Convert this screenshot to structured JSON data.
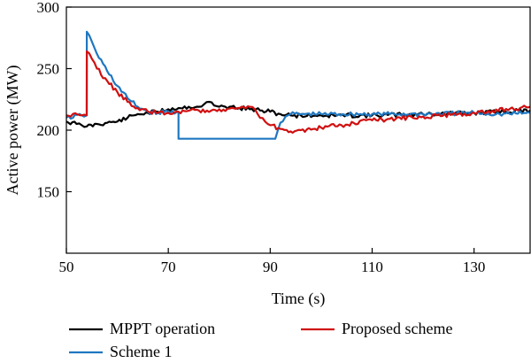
{
  "chart_data": {
    "type": "line",
    "xlabel": "Time (s)",
    "ylabel": "Active power (MW)",
    "xlim": [
      50,
      141
    ],
    "ylim": [
      100,
      300
    ],
    "xticks": [
      50,
      70,
      90,
      110,
      130
    ],
    "yticks": [
      150,
      200,
      250,
      300
    ],
    "grid": false,
    "legend_position": "bottom",
    "series": [
      {
        "name": "MPPT operation",
        "color": "#000000",
        "x": [
          50,
          52,
          53,
          54,
          56,
          58,
          60,
          62,
          64,
          66,
          68,
          70,
          72,
          74,
          76,
          77,
          78,
          79,
          80,
          82,
          84,
          86,
          88,
          90,
          92,
          94,
          96,
          100,
          110,
          120,
          130,
          141
        ],
        "y": [
          207,
          205,
          204,
          203,
          205,
          206,
          207,
          210,
          213,
          214,
          215,
          217,
          218,
          219,
          219,
          221,
          223,
          220,
          219,
          219,
          218,
          217,
          216,
          215,
          213,
          212,
          212,
          212,
          212,
          213,
          214,
          216
        ]
      },
      {
        "name": "Scheme 1",
        "color": "#1f77c0",
        "x": [
          50,
          53,
          54,
          54.01,
          55,
          56,
          58,
          60,
          62,
          64,
          66,
          68,
          70,
          72,
          72.01,
          80,
          91,
          91.5,
          92,
          93,
          94,
          96,
          100,
          110,
          120,
          130,
          135,
          141
        ],
        "y": [
          210,
          212,
          212,
          280,
          272,
          262,
          248,
          236,
          226,
          219,
          215,
          214,
          215,
          215,
          193,
          193,
          193,
          200,
          206,
          211,
          213,
          213,
          213,
          213,
          213,
          214,
          213,
          214
        ]
      },
      {
        "name": "Proposed scheme",
        "color": "#d01010",
        "x": [
          50,
          53,
          54,
          54.01,
          55,
          56,
          58,
          60,
          62,
          64,
          66,
          68,
          70,
          72,
          76,
          80,
          84,
          86,
          87,
          88,
          89,
          90,
          92,
          94,
          96,
          100,
          104,
          110,
          120,
          130,
          141
        ],
        "y": [
          212,
          212,
          212,
          264,
          258,
          250,
          240,
          231,
          223,
          218,
          215,
          214,
          214,
          215,
          216,
          217,
          218,
          219,
          217,
          210,
          207,
          204,
          201,
          199,
          200,
          202,
          204,
          208,
          211,
          214,
          219
        ]
      }
    ]
  }
}
